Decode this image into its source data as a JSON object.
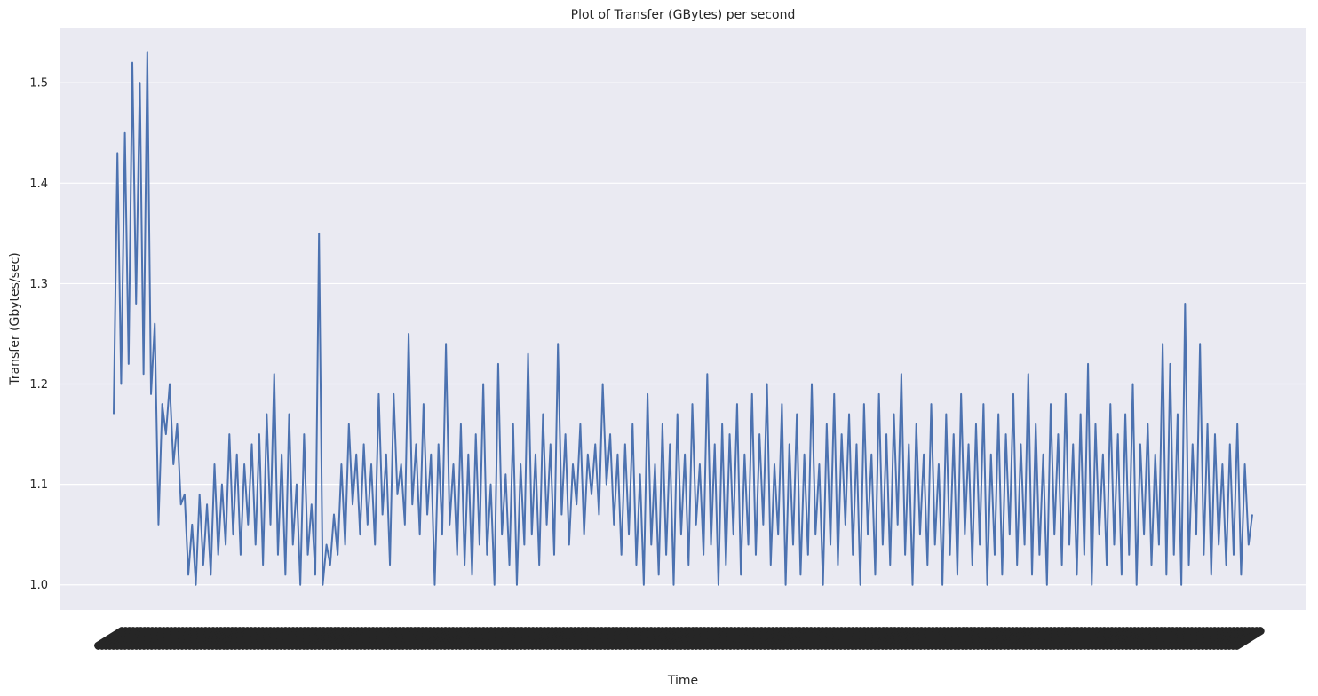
{
  "chart_data": {
    "type": "line",
    "title": "Plot of Transfer (GBytes) per second",
    "xlabel": "Time",
    "ylabel": "Transfer (Gbytes/sec)",
    "ylim": [
      0.975,
      1.555
    ],
    "yticks": [
      1.0,
      1.1,
      1.2,
      1.3,
      1.4,
      1.5
    ],
    "ytick_labels": [
      "1.0",
      "1.1",
      "1.2",
      "1.3",
      "1.4",
      "1.5"
    ],
    "xtick_labels_note": "",
    "grid": true,
    "background": "#eaeaf2",
    "series": [
      {
        "color": "#4c72b0",
        "values": [
          1.17,
          1.43,
          1.2,
          1.45,
          1.22,
          1.52,
          1.28,
          1.5,
          1.21,
          1.53,
          1.19,
          1.26,
          1.06,
          1.18,
          1.15,
          1.2,
          1.12,
          1.16,
          1.08,
          1.09,
          1.01,
          1.06,
          1.0,
          1.09,
          1.02,
          1.08,
          1.01,
          1.12,
          1.03,
          1.1,
          1.04,
          1.15,
          1.05,
          1.13,
          1.03,
          1.12,
          1.06,
          1.14,
          1.04,
          1.15,
          1.02,
          1.17,
          1.06,
          1.21,
          1.03,
          1.13,
          1.01,
          1.17,
          1.04,
          1.1,
          1.0,
          1.15,
          1.03,
          1.08,
          1.01,
          1.35,
          1.0,
          1.04,
          1.02,
          1.07,
          1.03,
          1.12,
          1.04,
          1.16,
          1.08,
          1.13,
          1.05,
          1.14,
          1.06,
          1.12,
          1.04,
          1.19,
          1.07,
          1.13,
          1.02,
          1.19,
          1.09,
          1.12,
          1.06,
          1.25,
          1.08,
          1.14,
          1.05,
          1.18,
          1.07,
          1.13,
          1.0,
          1.14,
          1.05,
          1.24,
          1.06,
          1.12,
          1.03,
          1.16,
          1.02,
          1.13,
          1.01,
          1.15,
          1.04,
          1.2,
          1.03,
          1.1,
          1.0,
          1.22,
          1.05,
          1.11,
          1.02,
          1.16,
          1.0,
          1.12,
          1.04,
          1.23,
          1.05,
          1.13,
          1.02,
          1.17,
          1.06,
          1.14,
          1.03,
          1.24,
          1.07,
          1.15,
          1.04,
          1.12,
          1.08,
          1.16,
          1.05,
          1.13,
          1.09,
          1.14,
          1.07,
          1.2,
          1.1,
          1.15,
          1.06,
          1.13,
          1.03,
          1.14,
          1.05,
          1.16,
          1.02,
          1.11,
          1.0,
          1.19,
          1.04,
          1.12,
          1.01,
          1.16,
          1.03,
          1.14,
          1.0,
          1.17,
          1.05,
          1.13,
          1.02,
          1.18,
          1.06,
          1.12,
          1.03,
          1.21,
          1.04,
          1.14,
          1.0,
          1.16,
          1.02,
          1.15,
          1.05,
          1.18,
          1.01,
          1.13,
          1.04,
          1.19,
          1.03,
          1.15,
          1.06,
          1.2,
          1.02,
          1.12,
          1.05,
          1.18,
          1.0,
          1.14,
          1.04,
          1.17,
          1.01,
          1.13,
          1.03,
          1.2,
          1.05,
          1.12,
          1.0,
          1.16,
          1.04,
          1.19,
          1.02,
          1.15,
          1.06,
          1.17,
          1.03,
          1.14,
          1.0,
          1.18,
          1.05,
          1.13,
          1.01,
          1.19,
          1.04,
          1.15,
          1.02,
          1.17,
          1.06,
          1.21,
          1.03,
          1.14,
          1.0,
          1.16,
          1.05,
          1.13,
          1.02,
          1.18,
          1.04,
          1.12,
          1.0,
          1.17,
          1.03,
          1.15,
          1.01,
          1.19,
          1.05,
          1.14,
          1.02,
          1.16,
          1.04,
          1.18,
          1.0,
          1.13,
          1.03,
          1.17,
          1.01,
          1.15,
          1.05,
          1.19,
          1.02,
          1.14,
          1.04,
          1.21,
          1.01,
          1.16,
          1.03,
          1.13,
          1.0,
          1.18,
          1.05,
          1.15,
          1.02,
          1.19,
          1.04,
          1.14,
          1.01,
          1.17,
          1.03,
          1.22,
          1.0,
          1.16,
          1.05,
          1.13,
          1.02,
          1.18,
          1.04,
          1.15,
          1.01,
          1.17,
          1.03,
          1.2,
          1.0,
          1.14,
          1.05,
          1.16,
          1.02,
          1.13,
          1.04,
          1.24,
          1.01,
          1.22,
          1.03,
          1.17,
          1.0,
          1.28,
          1.02,
          1.14,
          1.05,
          1.24,
          1.03,
          1.16,
          1.01,
          1.15,
          1.04,
          1.12,
          1.02,
          1.14,
          1.03,
          1.16,
          1.01,
          1.12,
          1.04,
          1.07
        ]
      }
    ]
  }
}
